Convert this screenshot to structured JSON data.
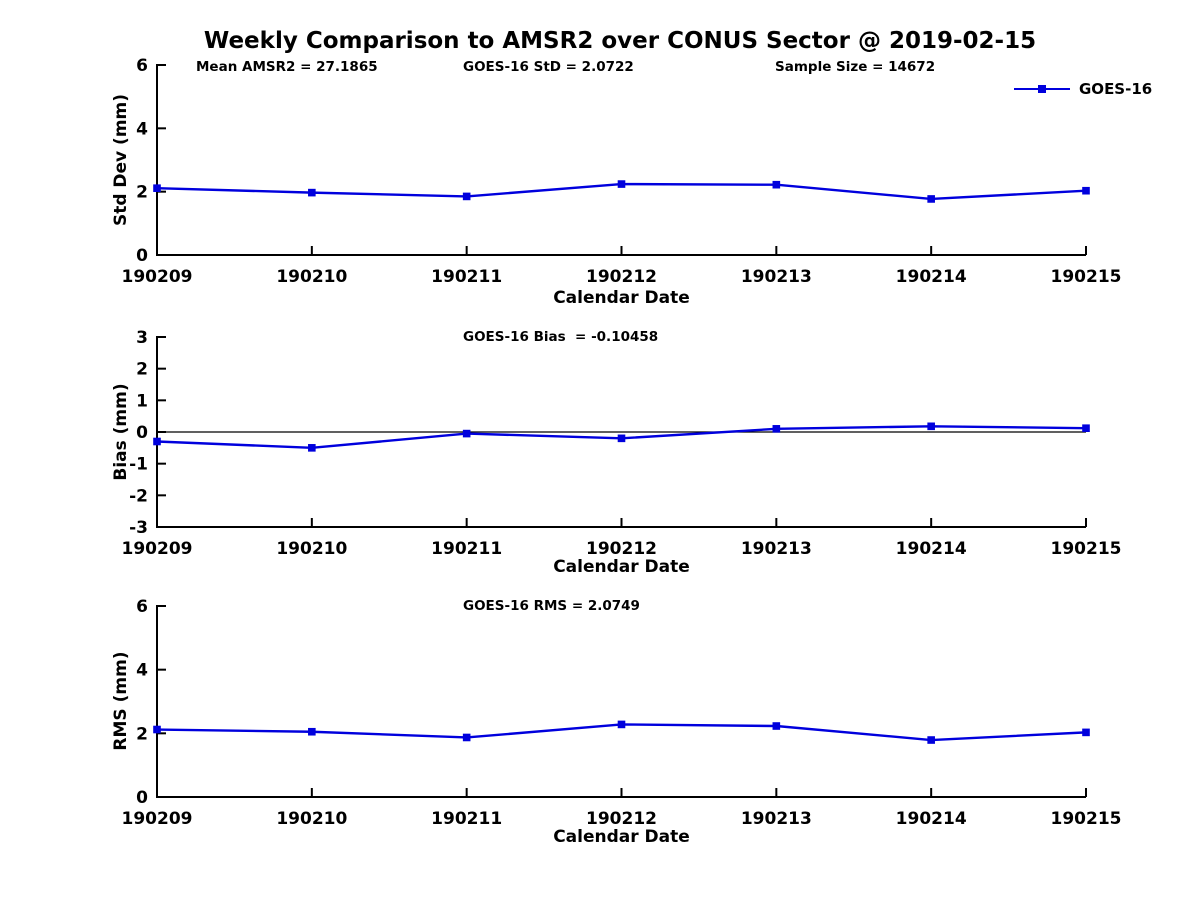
{
  "figure": {
    "title": "Weekly Comparison to AMSR2 over CONUS Sector @ 2019-02-15",
    "background_color": "#ffffff",
    "text_color": "#000000",
    "series_color": "#0000dd"
  },
  "legend": {
    "label": "GOES-16",
    "position": "top-right",
    "marker": "square"
  },
  "chart_data": [
    {
      "type": "line",
      "id": "stddev",
      "annotations": [
        "Mean AMSR2 = 27.1865",
        "GOES-16 StD = 2.0722",
        "Sample Size = 14672"
      ],
      "xlabel": "Calendar Date",
      "ylabel": "Std Dev (mm)",
      "ylim": [
        0,
        6
      ],
      "yticks": [
        0,
        2,
        4,
        6
      ],
      "grid": false,
      "zero_line": false,
      "categories": [
        "190209",
        "190210",
        "190211",
        "190212",
        "190213",
        "190214",
        "190215"
      ],
      "series": [
        {
          "name": "GOES-16",
          "color": "#0000dd",
          "marker": "square",
          "values": [
            2.11,
            1.97,
            1.85,
            2.24,
            2.22,
            1.77,
            2.03
          ]
        }
      ]
    },
    {
      "type": "line",
      "id": "bias",
      "annotations": [
        "GOES-16 Bias  = -0.10458"
      ],
      "xlabel": "Calendar Date",
      "ylabel": "Bias (mm)",
      "ylim": [
        -3,
        3
      ],
      "yticks": [
        3,
        2,
        1,
        0,
        -1,
        -2,
        -3
      ],
      "grid": false,
      "zero_line": true,
      "categories": [
        "190209",
        "190210",
        "190211",
        "190212",
        "190213",
        "190214",
        "190215"
      ],
      "series": [
        {
          "name": "GOES-16",
          "color": "#0000dd",
          "marker": "square",
          "values": [
            -0.3,
            -0.5,
            -0.05,
            -0.2,
            0.1,
            0.18,
            0.12
          ]
        }
      ]
    },
    {
      "type": "line",
      "id": "rms",
      "annotations": [
        "GOES-16 RMS = 2.0749"
      ],
      "xlabel": "Calendar Date",
      "ylabel": "RMS (mm)",
      "ylim": [
        0,
        6
      ],
      "yticks": [
        0,
        2,
        4,
        6
      ],
      "grid": false,
      "zero_line": false,
      "categories": [
        "190209",
        "190210",
        "190211",
        "190212",
        "190213",
        "190214",
        "190215"
      ],
      "series": [
        {
          "name": "GOES-16",
          "color": "#0000dd",
          "marker": "square",
          "values": [
            2.12,
            2.05,
            1.87,
            2.28,
            2.23,
            1.79,
            2.03
          ]
        }
      ]
    }
  ]
}
